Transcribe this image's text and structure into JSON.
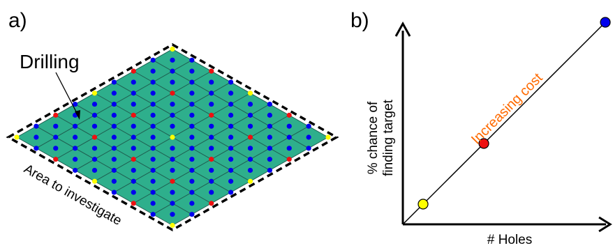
{
  "panel_a": {
    "label": "a)",
    "drilling_label": "Drilling",
    "area_label": "Area to investigate",
    "grid_fill_color": "#2eaf8c",
    "hole_colors": {
      "blue": "#0000ee",
      "red": "#ee1111",
      "yellow": "#ffff00"
    }
  },
  "panel_b": {
    "label": "b)",
    "xlabel": "# Holes",
    "ylabel_line1": "% chance of",
    "ylabel_line2": "finding  target",
    "line_annotation": "Increasing cost",
    "annotation_color": "#ff6a00"
  },
  "chart_data": {
    "type": "line",
    "xlabel": "# Holes",
    "ylabel": "% chance of finding target",
    "annotations": [
      "Increasing cost"
    ],
    "points": [
      {
        "x": 1,
        "y": 1,
        "color": "yellow"
      },
      {
        "x": 4,
        "y": 4,
        "color": "red"
      },
      {
        "x": 10,
        "y": 10,
        "color": "blue"
      }
    ]
  }
}
